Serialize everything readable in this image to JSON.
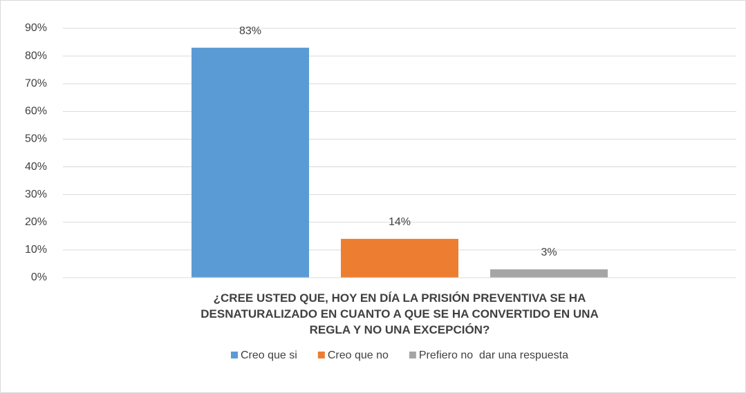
{
  "chart_data": {
    "type": "bar",
    "categories": [
      "¿CREE USTED QUE, HOY EN DÍA LA PRISIÓN PREVENTIVA SE HA DESNATURALIZADO EN CUANTO A QUE SE HA CONVERTIDO EN UNA REGLA Y NO UNA EXCEPCIÓN?"
    ],
    "series": [
      {
        "name": "Creo que si",
        "color": "#5b9bd5",
        "values": [
          83
        ],
        "value_labels": [
          "83%"
        ]
      },
      {
        "name": "Creo que no",
        "color": "#ed7d31",
        "values": [
          14
        ],
        "value_labels": [
          "14%"
        ]
      },
      {
        "name": "Prefiero no  dar una respuesta",
        "color": "#a5a5a5",
        "values": [
          3
        ],
        "value_labels": [
          "3%"
        ]
      }
    ],
    "ylim": [
      0,
      90
    ],
    "yticks": [
      {
        "value": 0,
        "label": "0%"
      },
      {
        "value": 10,
        "label": "10%"
      },
      {
        "value": 20,
        "label": "20%"
      },
      {
        "value": 30,
        "label": "30%"
      },
      {
        "value": 40,
        "label": "40%"
      },
      {
        "value": 50,
        "label": "50%"
      },
      {
        "value": 60,
        "label": "60%"
      },
      {
        "value": 70,
        "label": "70%"
      },
      {
        "value": 80,
        "label": "80%"
      },
      {
        "value": 90,
        "label": "90%"
      }
    ],
    "grid": true,
    "legend": "bottom"
  }
}
